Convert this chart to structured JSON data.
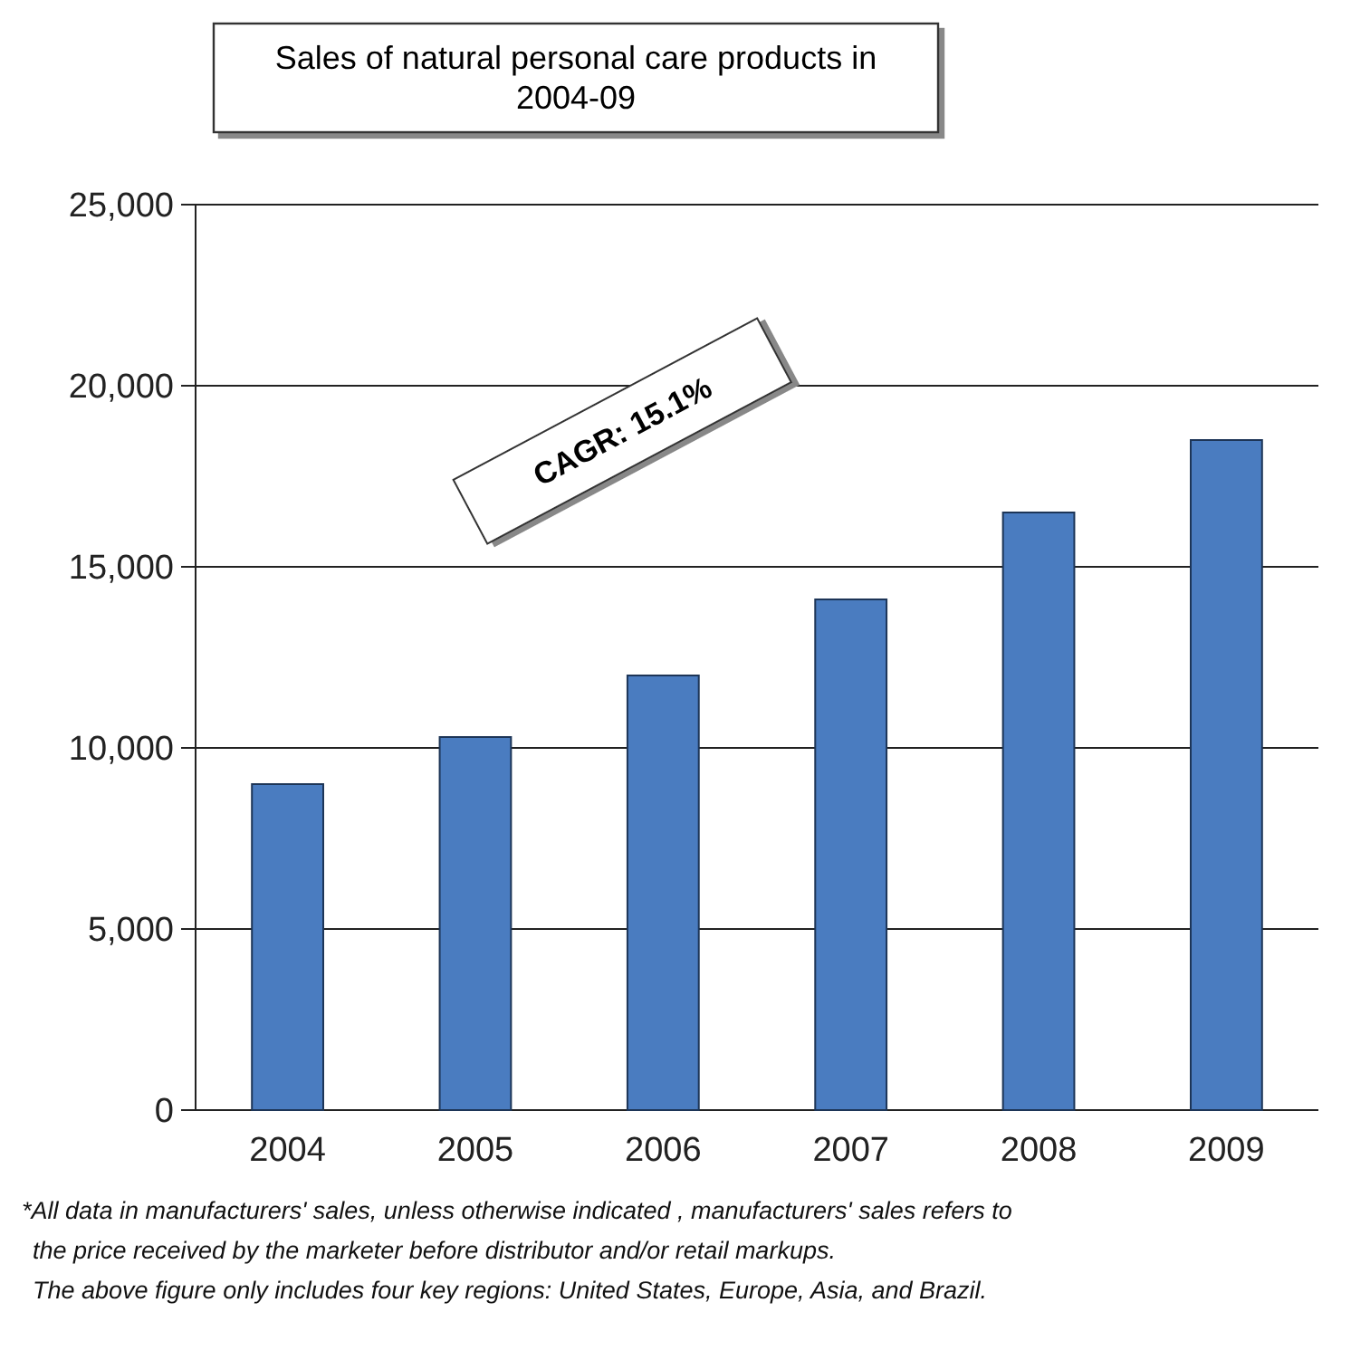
{
  "chart_data": {
    "type": "bar",
    "title": "Sales of natural personal care products in 2004-09",
    "categories": [
      "2004",
      "2005",
      "2006",
      "2007",
      "2008",
      "2009"
    ],
    "values": [
      9000,
      10300,
      12000,
      14100,
      16500,
      18500
    ],
    "color": "#4a7cc0",
    "ylim": [
      0,
      25000
    ],
    "yticks": [
      {
        "value": 0,
        "label": "0"
      },
      {
        "value": 5000,
        "label": "5,000"
      },
      {
        "value": 10000,
        "label": "10,000"
      },
      {
        "value": 15000,
        "label": "15,000"
      },
      {
        "value": 20000,
        "label": "20,000"
      },
      {
        "value": 25000,
        "label": "25,000"
      }
    ],
    "grid": "y",
    "annotations": [
      "CAGR: 15.1%",
      "*All data in manufacturers' sales, unless otherwise indicated , manufacturers' sales refers to",
      "the price received by the marketer before distributor and/or retail markups.",
      "The above figure only includes four key regions: United States, Europe, Asia, and Brazil."
    ]
  }
}
